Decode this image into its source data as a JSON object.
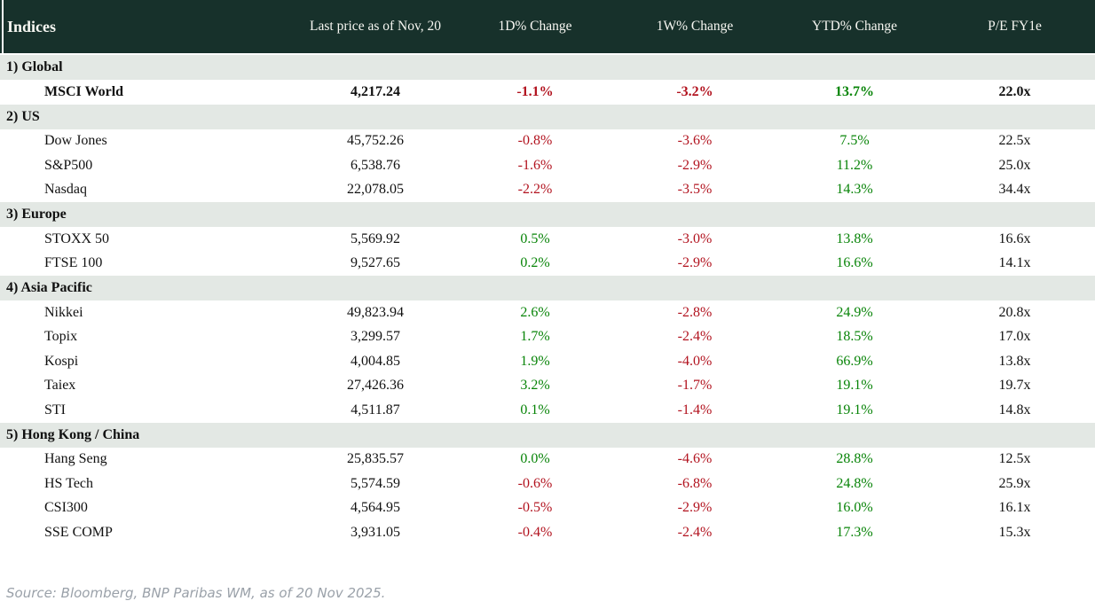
{
  "chart_data": {
    "type": "table",
    "title": "Indices",
    "columns": [
      "Indices",
      "Last price as of Nov, 20",
      "1D% Change",
      "1W% Change",
      "YTD% Change",
      "P/E FY1e"
    ],
    "sections": [
      {
        "label": "1) Global",
        "rows": [
          {
            "name": "MSCI World",
            "bold": true,
            "price": "4,217.24",
            "d1": "-1.1%",
            "w1": "-3.2%",
            "ytd": "13.7%",
            "pe": "22.0x"
          }
        ]
      },
      {
        "label": "2) US",
        "rows": [
          {
            "name": "Dow Jones",
            "bold": false,
            "price": "45,752.26",
            "d1": "-0.8%",
            "w1": "-3.6%",
            "ytd": "7.5%",
            "pe": "22.5x"
          },
          {
            "name": "S&P500",
            "bold": false,
            "price": "6,538.76",
            "d1": "-1.6%",
            "w1": "-2.9%",
            "ytd": "11.2%",
            "pe": "25.0x"
          },
          {
            "name": "Nasdaq",
            "bold": false,
            "price": "22,078.05",
            "d1": "-2.2%",
            "w1": "-3.5%",
            "ytd": "14.3%",
            "pe": "34.4x"
          }
        ]
      },
      {
        "label": "3) Europe",
        "rows": [
          {
            "name": "STOXX 50",
            "bold": false,
            "price": "5,569.92",
            "d1": "0.5%",
            "w1": "-3.0%",
            "ytd": "13.8%",
            "pe": "16.6x"
          },
          {
            "name": "FTSE 100",
            "bold": false,
            "price": "9,527.65",
            "d1": "0.2%",
            "w1": "-2.9%",
            "ytd": "16.6%",
            "pe": "14.1x"
          }
        ]
      },
      {
        "label": "4) Asia Pacific",
        "rows": [
          {
            "name": "Nikkei",
            "bold": false,
            "price": "49,823.94",
            "d1": "2.6%",
            "w1": "-2.8%",
            "ytd": "24.9%",
            "pe": "20.8x"
          },
          {
            "name": "Topix",
            "bold": false,
            "price": "3,299.57",
            "d1": "1.7%",
            "w1": "-2.4%",
            "ytd": "18.5%",
            "pe": "17.0x"
          },
          {
            "name": "Kospi",
            "bold": false,
            "price": "4,004.85",
            "d1": "1.9%",
            "w1": "-4.0%",
            "ytd": "66.9%",
            "pe": "13.8x"
          },
          {
            "name": "Taiex",
            "bold": false,
            "price": "27,426.36",
            "d1": "3.2%",
            "w1": "-1.7%",
            "ytd": "19.1%",
            "pe": "19.7x"
          },
          {
            "name": "STI",
            "bold": false,
            "price": "4,511.87",
            "d1": "0.1%",
            "w1": "-1.4%",
            "ytd": "19.1%",
            "pe": "14.8x"
          }
        ]
      },
      {
        "label": "5) Hong Kong / China",
        "rows": [
          {
            "name": "Hang Seng",
            "bold": false,
            "price": "25,835.57",
            "d1": "0.0%",
            "w1": "-4.6%",
            "ytd": "28.8%",
            "pe": "12.5x"
          },
          {
            "name": "HS Tech",
            "bold": false,
            "price": "5,574.59",
            "d1": "-0.6%",
            "w1": "-6.8%",
            "ytd": "24.8%",
            "pe": "25.9x"
          },
          {
            "name": "CSI300",
            "bold": false,
            "price": "4,564.95",
            "d1": "-0.5%",
            "w1": "-2.9%",
            "ytd": "16.0%",
            "pe": "16.1x"
          },
          {
            "name": "SSE COMP",
            "bold": false,
            "price": "3,931.05",
            "d1": "-0.4%",
            "w1": "-2.4%",
            "ytd": "17.3%",
            "pe": "15.3x"
          }
        ]
      }
    ]
  },
  "source_note": "Source: Bloomberg, BNP Paribas WM, as of 20 Nov 2025.",
  "colors": {
    "header_bg": "#17312b",
    "header_text": "#f7f7f2",
    "section_bg": "#e3e8e4",
    "negative": "#b2131f",
    "positive": "#088408",
    "source_text": "#9aa1a9"
  }
}
